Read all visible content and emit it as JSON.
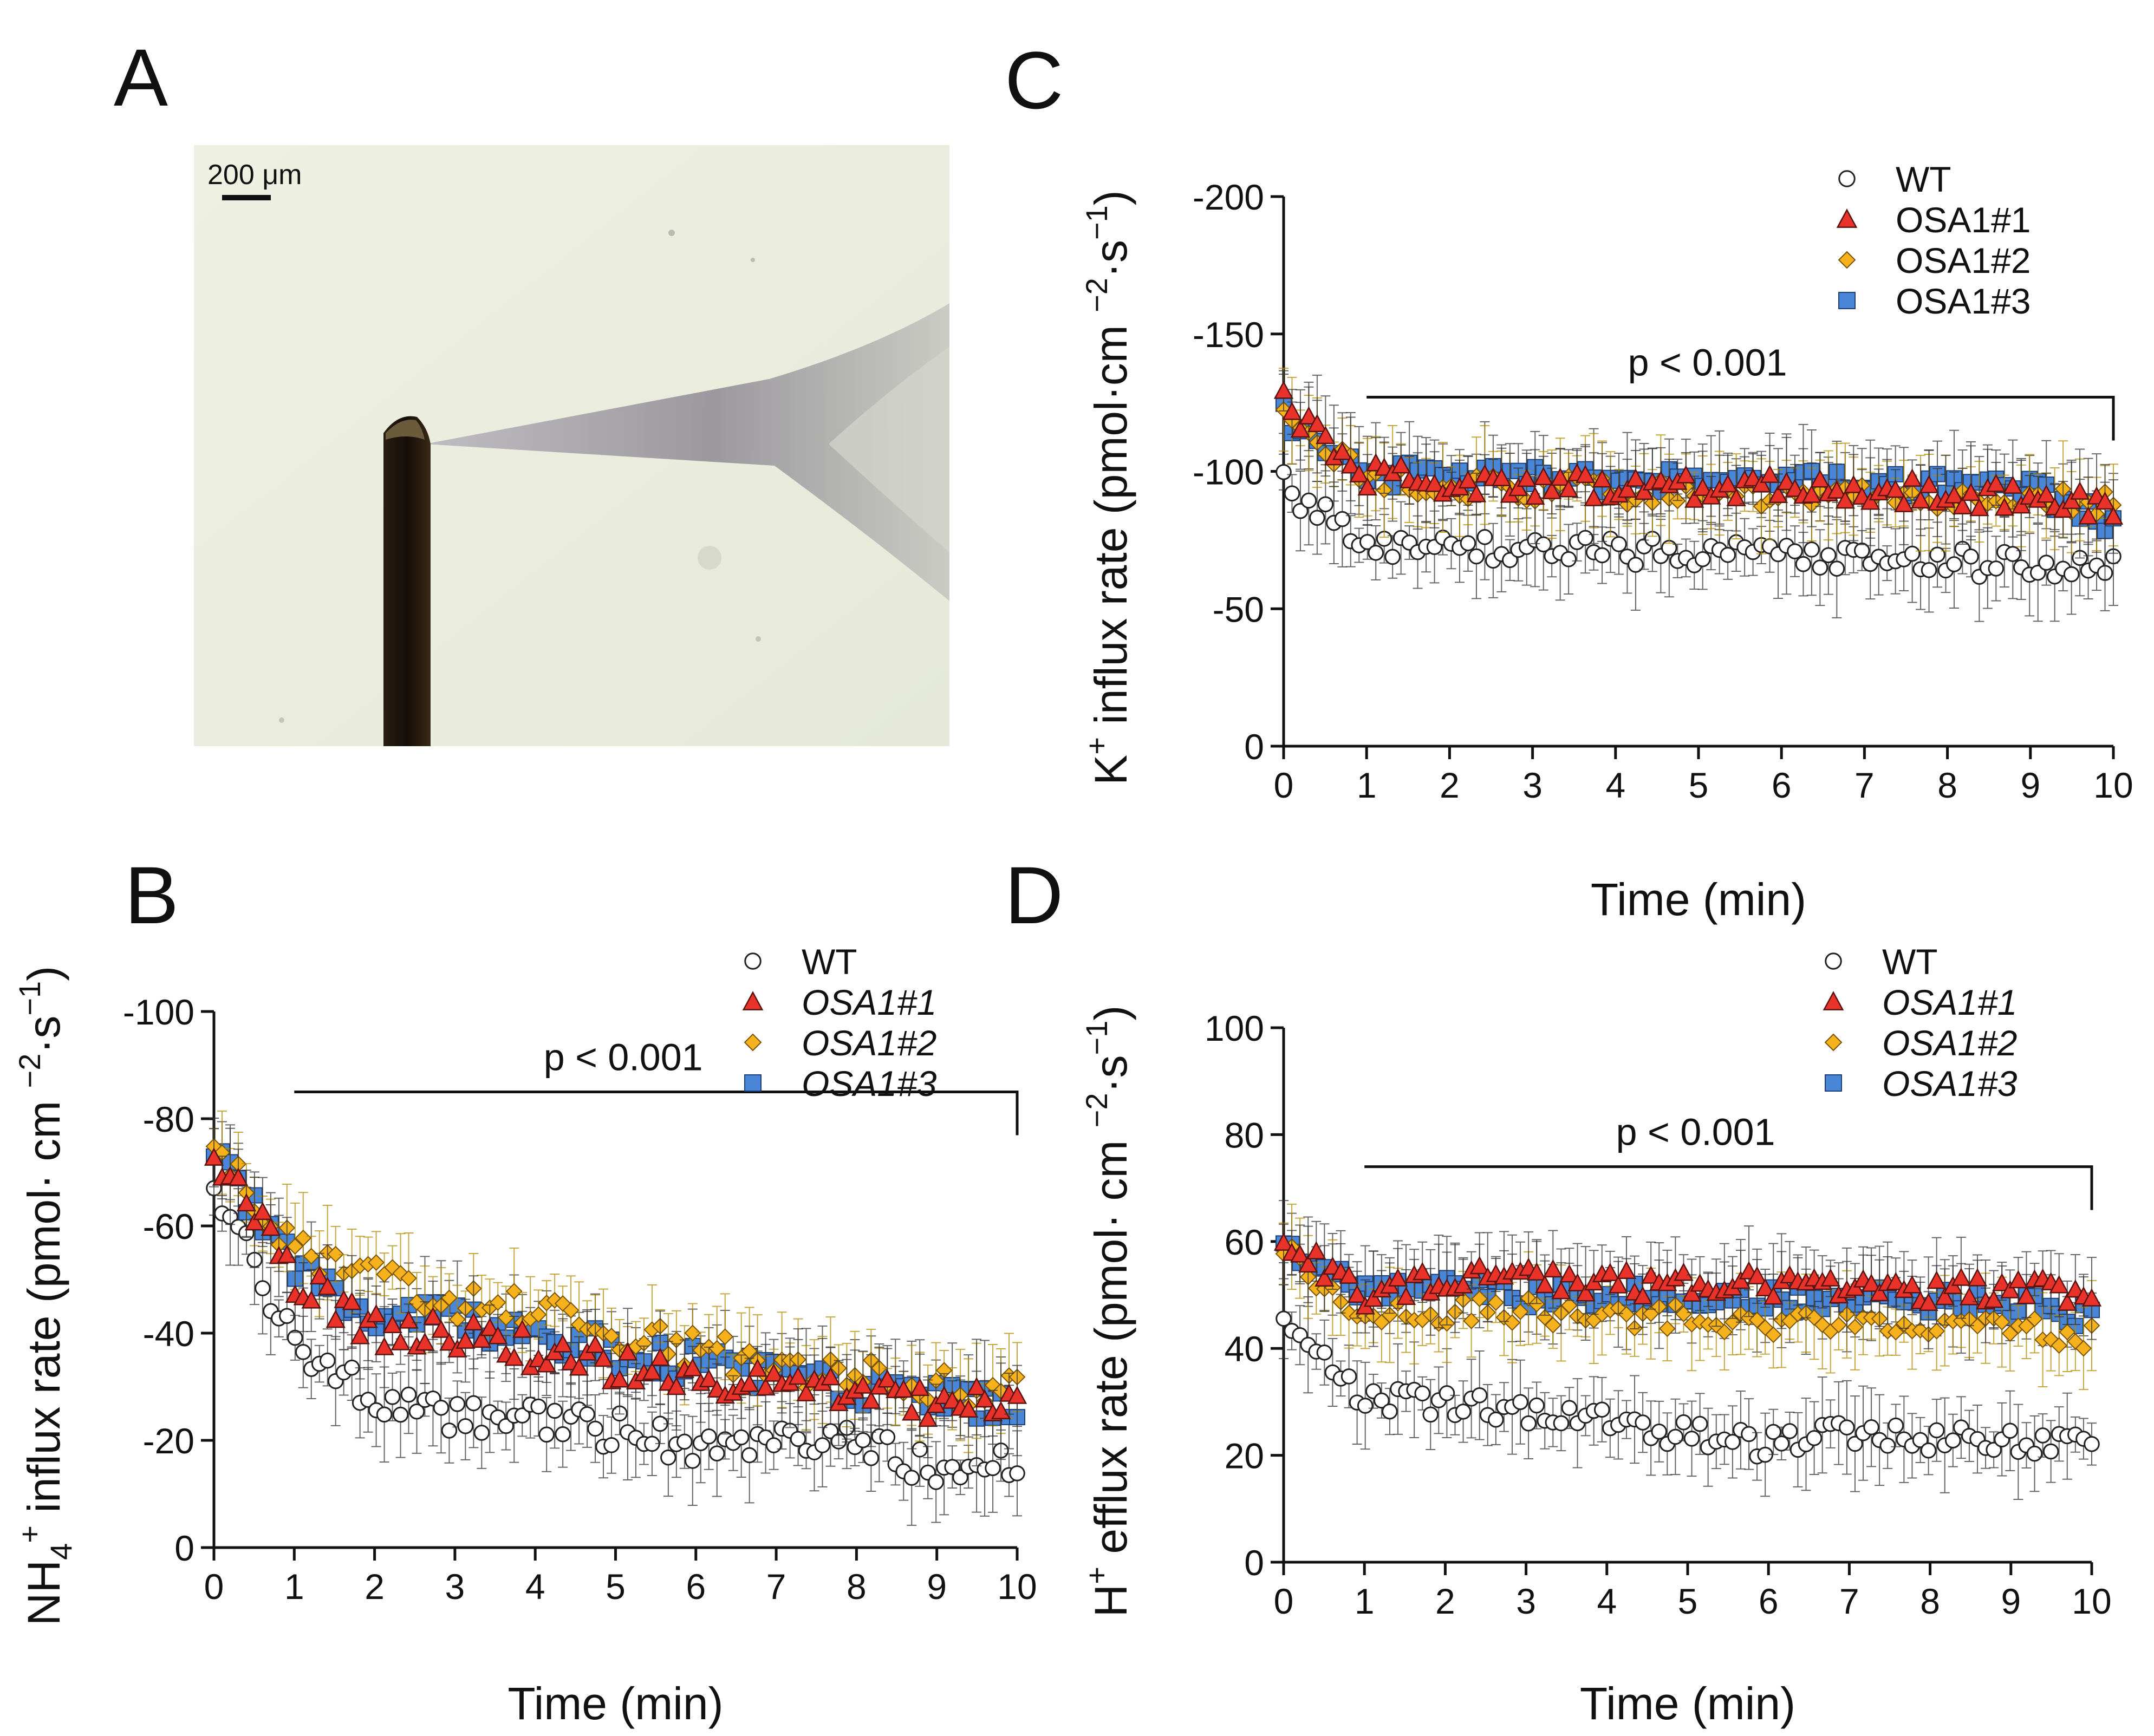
{
  "figure": {
    "panels": {
      "A": {
        "letter": "A",
        "scale_bar_text": "200 μm"
      },
      "B": {
        "letter": "B"
      },
      "C": {
        "letter": "C"
      },
      "D": {
        "letter": "D"
      }
    }
  },
  "colors": {
    "WT": "#ffffff",
    "OSA1#1": "#e8322a",
    "OSA1#2": "#f5b21d",
    "OSA1#3": "#4a86d8",
    "axis": "#111111"
  },
  "chart_data": [
    {
      "id": "B",
      "type": "scatter",
      "ylabel_parts": [
        "NH",
        "4",
        "+",
        " influx rate  (pmol· cm ",
        "−2",
        "·s",
        "−1",
        ")"
      ],
      "xlabel": "Time (min)",
      "xlim": [
        0,
        10
      ],
      "ylim": [
        -100,
        0
      ],
      "x_ticks": [
        0,
        1,
        2,
        3,
        4,
        5,
        6,
        7,
        8,
        9,
        10
      ],
      "y_ticks": [
        0,
        -20,
        -40,
        -60,
        -80,
        -100
      ],
      "legend": [
        {
          "series": "WT",
          "label": "WT",
          "italic": false,
          "marker": "circle"
        },
        {
          "series": "OSA1#1",
          "label": "OSA1#1",
          "italic": true,
          "marker": "triangle"
        },
        {
          "series": "OSA1#2",
          "label": "OSA1#2",
          "italic": true,
          "marker": "diamond"
        },
        {
          "series": "OSA1#3",
          "label": "OSA1#3",
          "italic": true,
          "marker": "square"
        }
      ],
      "significance": {
        "label": "p < 0.001",
        "x_range": [
          1,
          10
        ],
        "y": -85
      },
      "series": [
        {
          "name": "WT",
          "x": [
            0,
            1,
            2,
            3,
            4,
            5,
            6,
            7,
            8,
            9,
            10
          ],
          "values": [
            -68,
            -37,
            -28,
            -24,
            -24,
            -22,
            -19,
            -20,
            -19,
            -15,
            -15
          ]
        },
        {
          "name": "OSA1#1",
          "x": [
            0,
            1,
            2,
            3,
            4,
            5,
            6,
            7,
            8,
            9,
            10
          ],
          "values": [
            -74,
            -50,
            -41,
            -40,
            -37,
            -34,
            -31,
            -30,
            -29,
            -27,
            -27
          ]
        },
        {
          "name": "OSA1#2",
          "x": [
            0,
            1,
            2,
            3,
            4,
            5,
            6,
            7,
            8,
            9,
            10
          ],
          "values": [
            -76,
            -55,
            -50,
            -46,
            -44,
            -40,
            -37,
            -34,
            -32,
            -30,
            -29
          ]
        },
        {
          "name": "OSA1#3",
          "x": [
            0,
            1,
            2,
            3,
            4,
            5,
            6,
            7,
            8,
            9,
            10
          ],
          "values": [
            -74,
            -52,
            -44,
            -42,
            -40,
            -37,
            -34,
            -32,
            -30,
            -28,
            -27
          ]
        }
      ]
    },
    {
      "id": "C",
      "type": "scatter",
      "ylabel_parts": [
        "K",
        "",
        "+",
        " influx rate  (pmol·cm ",
        "−2",
        "·s",
        "−1",
        ")"
      ],
      "xlabel": "Time (min)",
      "xlim": [
        0,
        10
      ],
      "ylim": [
        -200,
        0
      ],
      "x_ticks": [
        0,
        1,
        2,
        3,
        4,
        5,
        6,
        7,
        8,
        9,
        10
      ],
      "y_ticks": [
        0,
        -50,
        -100,
        -150,
        -200
      ],
      "legend": [
        {
          "series": "WT",
          "label": "WT",
          "italic": false,
          "marker": "circle"
        },
        {
          "series": "OSA1#1",
          "label": "OSA1#1",
          "italic": false,
          "marker": "triangle"
        },
        {
          "series": "OSA1#2",
          "label": "OSA1#2",
          "italic": false,
          "marker": "diamond"
        },
        {
          "series": "OSA1#3",
          "label": "OSA1#3",
          "italic": false,
          "marker": "square"
        }
      ],
      "significance": {
        "label": "p < 0.001",
        "x_range": [
          1,
          10
        ],
        "y": -127
      },
      "series": [
        {
          "name": "WT",
          "x": [
            0,
            1,
            2,
            3,
            4,
            5,
            6,
            7,
            8,
            9,
            10
          ],
          "values": [
            -95,
            -72,
            -72,
            -71,
            -71,
            -70,
            -70,
            -68,
            -67,
            -66,
            -65
          ]
        },
        {
          "name": "OSA1#1",
          "x": [
            0,
            1,
            2,
            3,
            4,
            5,
            6,
            7,
            8,
            9,
            10
          ],
          "values": [
            -125,
            -99,
            -95,
            -95,
            -95,
            -94,
            -94,
            -93,
            -92,
            -91,
            -86
          ]
        },
        {
          "name": "OSA1#2",
          "x": [
            0,
            1,
            2,
            3,
            4,
            5,
            6,
            7,
            8,
            9,
            10
          ],
          "values": [
            -118,
            -97,
            -95,
            -94,
            -93,
            -92,
            -92,
            -92,
            -91,
            -90,
            -88
          ]
        },
        {
          "name": "OSA1#3",
          "x": [
            0,
            1,
            2,
            3,
            4,
            5,
            6,
            7,
            8,
            9,
            10
          ],
          "values": [
            -120,
            -100,
            -97,
            -97,
            -96,
            -96,
            -96,
            -96,
            -95,
            -93,
            -81
          ]
        }
      ]
    },
    {
      "id": "D",
      "type": "scatter",
      "ylabel_parts": [
        "H",
        "",
        "+",
        " efflux rate  (pmol· cm ",
        "−2",
        "·s",
        "−1",
        ")"
      ],
      "xlabel": "Time (min)",
      "xlim": [
        0,
        10
      ],
      "ylim": [
        0,
        100
      ],
      "x_ticks": [
        0,
        1,
        2,
        3,
        4,
        5,
        6,
        7,
        8,
        9,
        10
      ],
      "y_ticks": [
        0,
        20,
        40,
        60,
        80,
        100
      ],
      "legend": [
        {
          "series": "WT",
          "label": "WT",
          "italic": false,
          "marker": "circle"
        },
        {
          "series": "OSA1#1",
          "label": "OSA1#1",
          "italic": true,
          "marker": "triangle"
        },
        {
          "series": "OSA1#2",
          "label": "OSA1#2",
          "italic": true,
          "marker": "diamond"
        },
        {
          "series": "OSA1#3",
          "label": "OSA1#3",
          "italic": true,
          "marker": "square"
        }
      ],
      "significance": {
        "label": "p < 0.001",
        "x_range": [
          1,
          10
        ],
        "y": 74
      },
      "series": [
        {
          "name": "WT",
          "x": [
            0,
            1,
            2,
            3,
            4,
            5,
            6,
            7,
            8,
            9,
            10
          ],
          "values": [
            46,
            30,
            30,
            28,
            26,
            24,
            22,
            24,
            23,
            23,
            22
          ]
        },
        {
          "name": "OSA1#1",
          "x": [
            0,
            1,
            2,
            3,
            4,
            5,
            6,
            7,
            8,
            9,
            10
          ],
          "values": [
            60,
            50,
            53,
            53,
            52,
            52,
            52,
            52,
            51,
            51,
            51
          ]
        },
        {
          "name": "OSA1#2",
          "x": [
            0,
            1,
            2,
            3,
            4,
            5,
            6,
            7,
            8,
            9,
            10
          ],
          "values": [
            58,
            46,
            47,
            47,
            46,
            46,
            45,
            45,
            45,
            44,
            42
          ]
        },
        {
          "name": "OSA1#3",
          "x": [
            0,
            1,
            2,
            3,
            4,
            5,
            6,
            7,
            8,
            9,
            10
          ],
          "values": [
            60,
            50,
            51,
            50,
            50,
            50,
            49,
            49,
            49,
            48,
            46
          ]
        }
      ]
    }
  ]
}
